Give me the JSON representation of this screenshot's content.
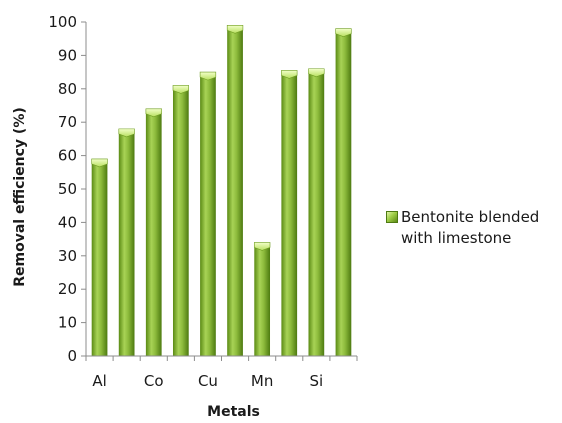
{
  "chart_data": {
    "type": "bar",
    "categories": [
      "Al",
      "",
      "Co",
      "",
      "Cu",
      "",
      "Mn",
      "",
      "Si",
      ""
    ],
    "series": [
      {
        "name": "Bentonite blended with limestone",
        "values": [
          59,
          68,
          74,
          81,
          85,
          99,
          34,
          85.5,
          86,
          98
        ]
      }
    ],
    "xlabel": "Metals",
    "ylabel": "Removal efficiency (%)",
    "ylim": [
      0,
      100
    ],
    "yticks": [
      0,
      10,
      20,
      30,
      40,
      50,
      60,
      70,
      80,
      90,
      100
    ],
    "grid": false,
    "legend_position": "right",
    "bar_color": "#8dbb3c"
  }
}
